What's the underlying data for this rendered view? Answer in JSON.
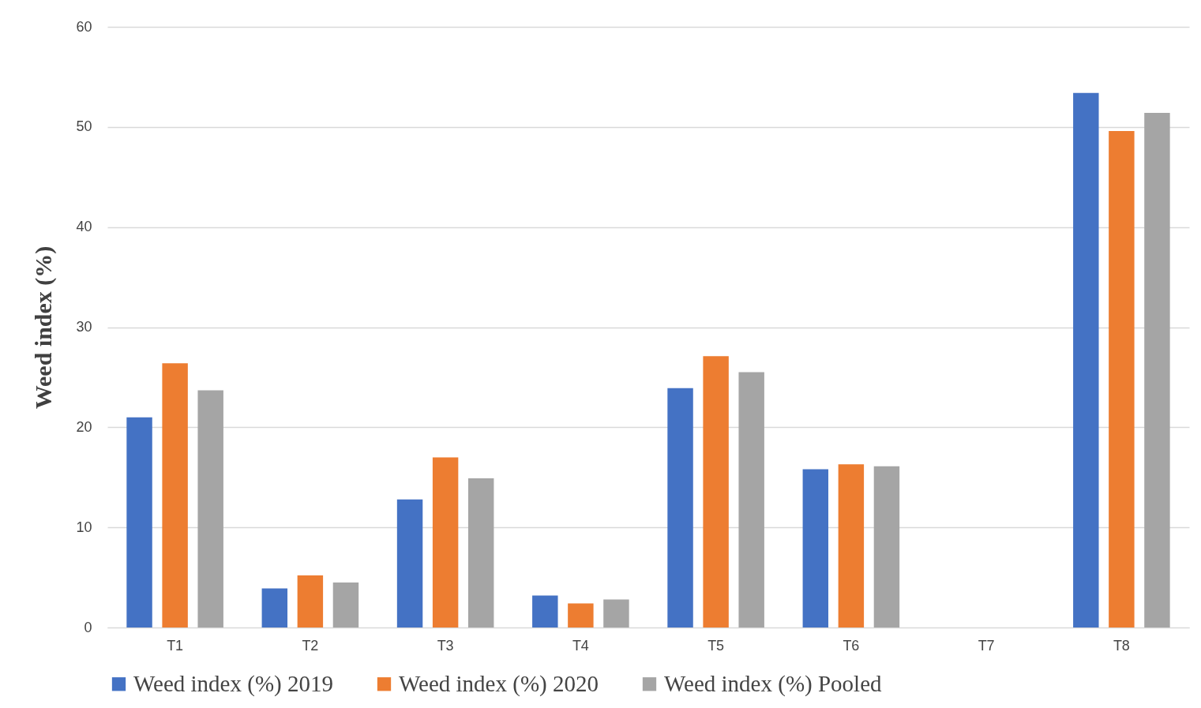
{
  "chart_data": {
    "type": "bar",
    "ylabel": "Weed index (%)",
    "categories": [
      "T1",
      "T2",
      "T3",
      "T4",
      "T5",
      "T6",
      "T7",
      "T8"
    ],
    "series": [
      {
        "name": "Weed index (%) 2019",
        "color": "#4472c4",
        "values": [
          21.0,
          3.9,
          12.8,
          3.2,
          23.9,
          15.8,
          0,
          53.4
        ]
      },
      {
        "name": "Weed index (%) 2020",
        "color": "#ed7d31",
        "values": [
          26.4,
          5.2,
          17.0,
          2.4,
          27.1,
          16.3,
          0,
          49.6
        ]
      },
      {
        "name": "Weed index (%) Pooled",
        "color": "#a5a5a5",
        "values": [
          23.7,
          4.5,
          14.9,
          2.8,
          25.5,
          16.1,
          0,
          51.4
        ]
      }
    ],
    "ylim": [
      0,
      60
    ],
    "yticks": [
      0,
      10,
      20,
      30,
      40,
      50,
      60
    ],
    "grid": "y",
    "legend": "bottom"
  }
}
